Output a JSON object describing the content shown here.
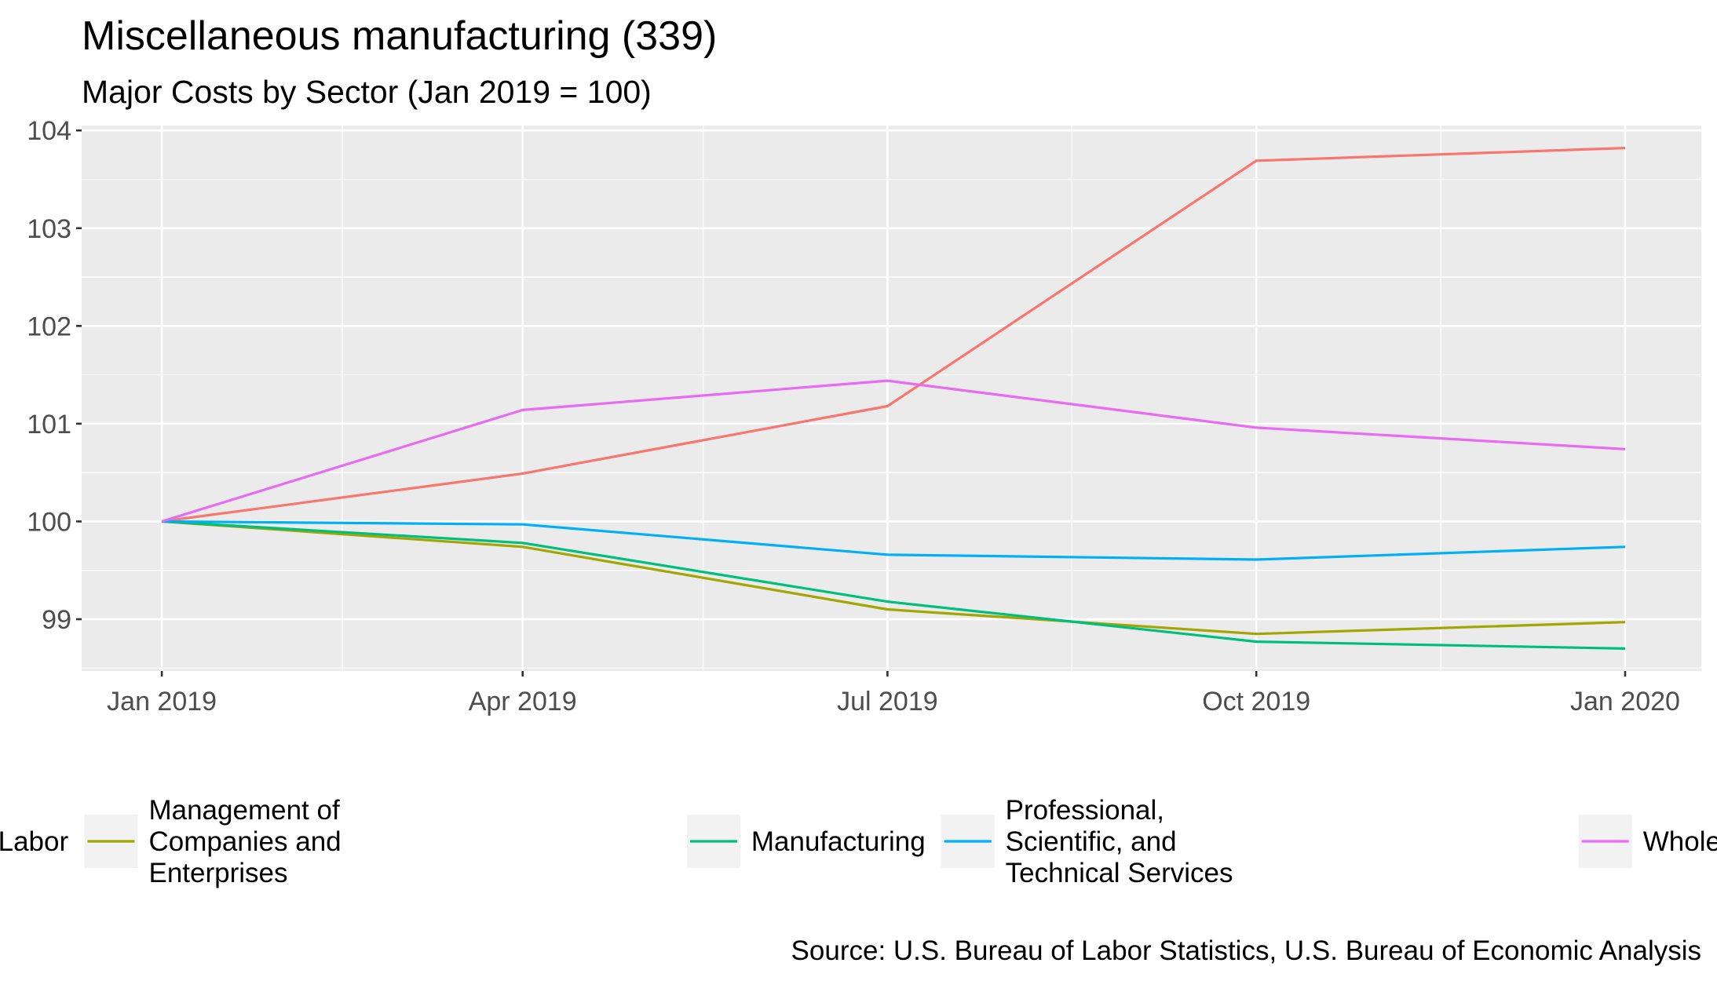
{
  "chart_data": {
    "type": "line",
    "title": "Miscellaneous manufacturing (339)",
    "subtitle": "Major Costs by Sector (Jan 2019 = 100)",
    "xlabel": "",
    "ylabel": "",
    "caption": "Source: U.S. Bureau of Labor Statistics, U.S. Bureau of Economic Analysis",
    "x": [
      "2019-01-01",
      "2019-04-01",
      "2019-07-01",
      "2019-10-01",
      "2020-01-01"
    ],
    "x_ticks": [
      {
        "date": "2019-01-01",
        "label": "Jan 2019"
      },
      {
        "date": "2019-04-01",
        "label": "Apr 2019"
      },
      {
        "date": "2019-07-01",
        "label": "Jul 2019"
      },
      {
        "date": "2019-10-01",
        "label": "Oct 2019"
      },
      {
        "date": "2020-01-01",
        "label": "Jan 2020"
      }
    ],
    "x_minor_ticks": [
      "2019-02-15",
      "2019-05-16",
      "2019-08-16",
      "2019-11-16"
    ],
    "xlim": [
      "2018-12-12",
      "2020-01-20"
    ],
    "ylim": [
      98.47,
      104.05
    ],
    "y_ticks": [
      99,
      100,
      101,
      102,
      103,
      104
    ],
    "y_minor_ticks": [
      98.5,
      99.5,
      100.5,
      101.5,
      102.5,
      103.5
    ],
    "grid": true,
    "legend_position": "bottom",
    "series": [
      {
        "name": "Labor",
        "color": "#F8766D",
        "values": [
          100,
          100.49,
          101.18,
          103.69,
          103.82
        ]
      },
      {
        "name": "Management of Companies and Enterprises",
        "legend_lines": [
          "Management of",
          "Companies and",
          "Enterprises"
        ],
        "color": "#A3A500",
        "values": [
          100,
          99.74,
          99.1,
          98.85,
          98.97
        ]
      },
      {
        "name": "Manufacturing",
        "color": "#00BF7D",
        "values": [
          100,
          99.78,
          99.18,
          98.77,
          98.7
        ]
      },
      {
        "name": "Professional, Scientific, and Technical Services",
        "legend_lines": [
          "Professional,",
          "Scientific, and",
          "Technical Services"
        ],
        "color": "#00B0F6",
        "values": [
          100,
          99.97,
          99.66,
          99.61,
          99.74
        ]
      },
      {
        "name": "Wholesale Trade",
        "color": "#E76BF3",
        "values": [
          100,
          101.14,
          101.44,
          100.96,
          100.74
        ]
      }
    ]
  }
}
